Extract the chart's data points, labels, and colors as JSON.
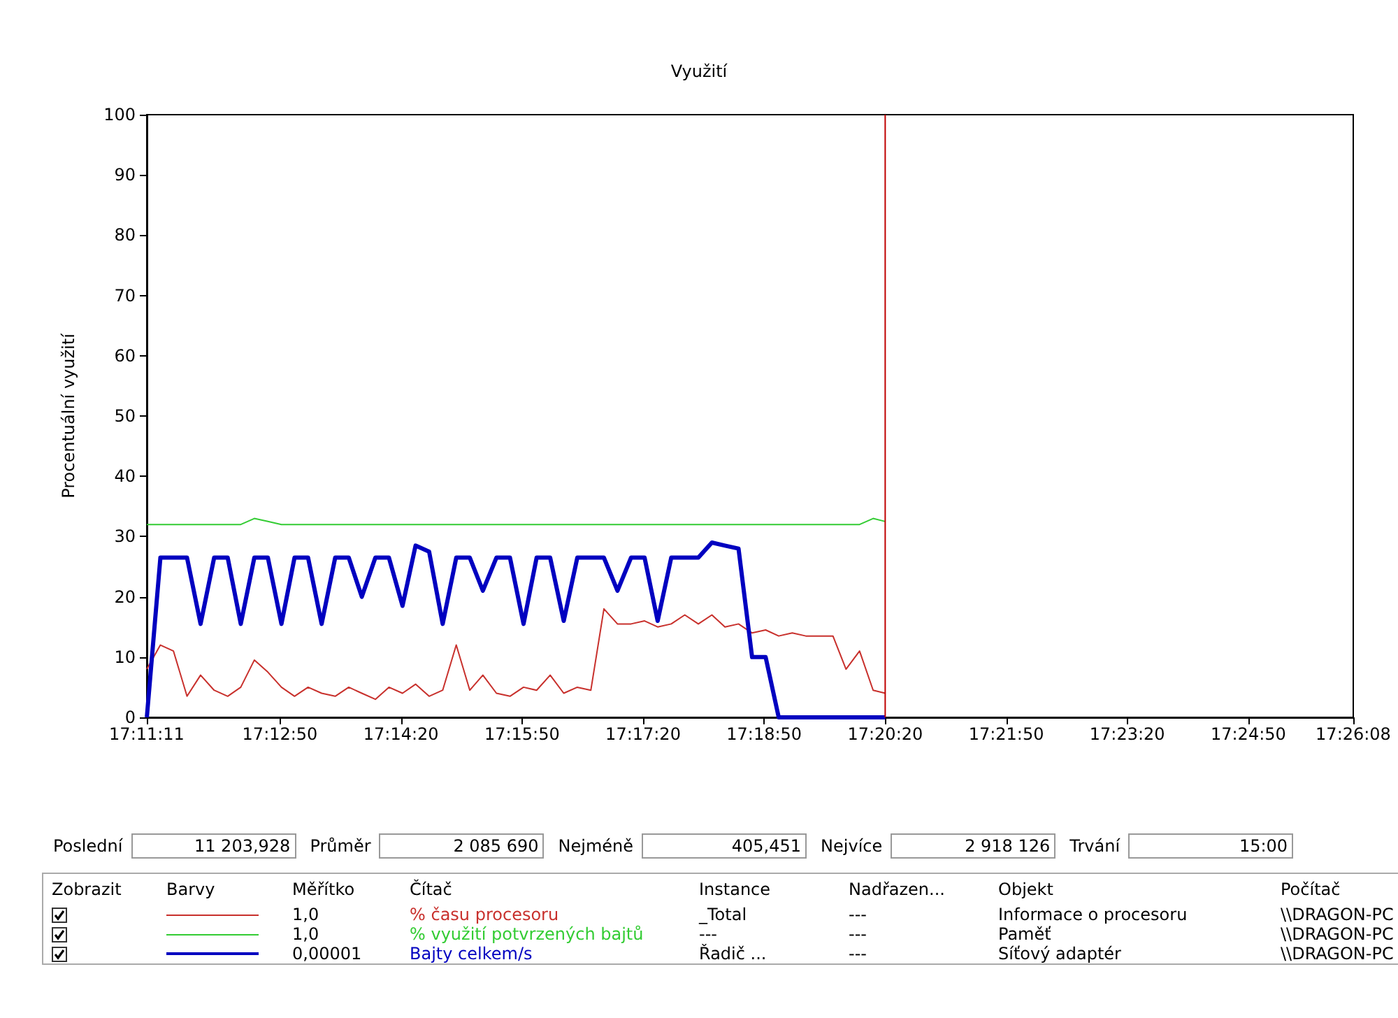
{
  "chart_data": {
    "type": "line",
    "title": "Využití",
    "ylabel": "Procentuální využití",
    "x": [
      17.1864,
      17.1892,
      17.1919,
      17.1947,
      17.1975,
      17.2003,
      17.2031,
      17.2058,
      17.2086,
      17.2114,
      17.2142,
      17.2169,
      17.2197,
      17.2225,
      17.2253,
      17.2281,
      17.2308,
      17.2336,
      17.2364,
      17.2392,
      17.2419,
      17.2447,
      17.2475,
      17.2503,
      17.2531,
      17.2558,
      17.2586,
      17.2614,
      17.2642,
      17.2669,
      17.2697,
      17.2725,
      17.2753,
      17.2781,
      17.2808,
      17.2836,
      17.2864,
      17.2892,
      17.2919,
      17.2947,
      17.2975,
      17.3003,
      17.3031,
      17.3058,
      17.3086,
      17.3114,
      17.3142,
      17.3169,
      17.3197,
      17.3225,
      17.3253,
      17.3281,
      17.3308,
      17.3336,
      17.3364,
      17.3389
    ],
    "series": [
      {
        "name": "% času procesoru",
        "color": "#c8302c",
        "values": [
          8,
          12,
          11,
          3.5,
          7,
          4.5,
          3.5,
          5,
          9.5,
          7.5,
          5,
          3.5,
          5,
          4,
          3.5,
          5,
          4,
          3,
          5,
          4,
          5.5,
          3.5,
          4.5,
          12,
          4.5,
          7,
          4,
          3.5,
          5,
          4.5,
          7,
          4,
          5,
          4.5,
          18,
          15.5,
          15.5,
          16,
          15,
          15.5,
          17,
          15.5,
          17,
          15,
          15.5,
          14,
          14.5,
          13.5,
          14,
          13.5,
          13.5,
          13.5,
          8,
          11,
          4.5,
          4
        ]
      },
      {
        "name": "% využití potvrzených bajtů",
        "color": "#33cc33",
        "values": [
          32,
          32,
          32,
          32,
          32,
          32,
          32,
          32,
          33,
          32.5,
          32,
          32,
          32,
          32,
          32,
          32,
          32,
          32,
          32,
          32,
          32,
          32,
          32,
          32,
          32,
          32,
          32,
          32,
          32,
          32,
          32,
          32,
          32,
          32,
          32,
          32,
          32,
          32,
          32,
          32,
          32,
          32,
          32,
          32,
          32,
          32,
          32,
          32,
          32,
          32,
          32,
          32,
          32,
          32,
          33,
          32.5
        ]
      },
      {
        "name": "Bajty celkem/s",
        "color": "#0000c0",
        "values": [
          0,
          26.5,
          26.5,
          26.5,
          15.5,
          26.5,
          26.5,
          15.5,
          26.5,
          26.5,
          15.5,
          26.5,
          26.5,
          15.5,
          26.5,
          26.5,
          20,
          26.5,
          26.5,
          18.5,
          28.5,
          27.5,
          15.5,
          26.5,
          26.5,
          21,
          26.5,
          26.5,
          15.5,
          26.5,
          26.5,
          16,
          26.5,
          26.5,
          26.5,
          21,
          26.5,
          26.5,
          16,
          26.5,
          26.5,
          26.5,
          29,
          28.5,
          28,
          10,
          10,
          0,
          0,
          0,
          0,
          0,
          0,
          0,
          0,
          0
        ]
      }
    ],
    "xlim": [
      17.18639,
      17.43556
    ],
    "xticks": [
      {
        "value": 17.18639,
        "label": "17:11:11"
      },
      {
        "value": 17.21389,
        "label": "17:12:50"
      },
      {
        "value": 17.23889,
        "label": "17:14:20"
      },
      {
        "value": 17.26389,
        "label": "17:15:50"
      },
      {
        "value": 17.28889,
        "label": "17:17:20"
      },
      {
        "value": 17.31389,
        "label": "17:18:50"
      },
      {
        "value": 17.33889,
        "label": "17:20:20"
      },
      {
        "value": 17.36389,
        "label": "17:21:50"
      },
      {
        "value": 17.38889,
        "label": "17:23:20"
      },
      {
        "value": 17.41389,
        "label": "17:24:50"
      },
      {
        "value": 17.43556,
        "label": "17:26:08"
      }
    ],
    "ylim": [
      0,
      100
    ],
    "yticks": [
      0,
      10,
      20,
      30,
      40,
      50,
      60,
      70,
      80,
      90,
      100
    ],
    "ref_lines": [
      {
        "axis": "x",
        "value": 17.33889,
        "color": "#c00000"
      }
    ],
    "legend": "bottom",
    "annotations": [
      "Poslední",
      "11 203,928",
      "Průměr",
      "2 085 690",
      "Nejméně",
      "405,451",
      "Nejvíce",
      "2 918 126",
      "Trvání",
      "15:00",
      "Zobrazit",
      "Barvy",
      "Měřítko",
      "Čítač",
      "Instance",
      "Nadřazen...",
      "Objekt",
      "Počítač",
      "1,0",
      "_Total",
      "---",
      "Informace o procesoru",
      "\\\\DRAGON-PC",
      "1,0",
      "---",
      "---",
      "Paměť",
      "\\\\DRAGON-PC",
      "0,00001",
      "Řadič ...",
      "---",
      "Síťový adaptér",
      "\\\\DRAGON-PC"
    ]
  }
}
